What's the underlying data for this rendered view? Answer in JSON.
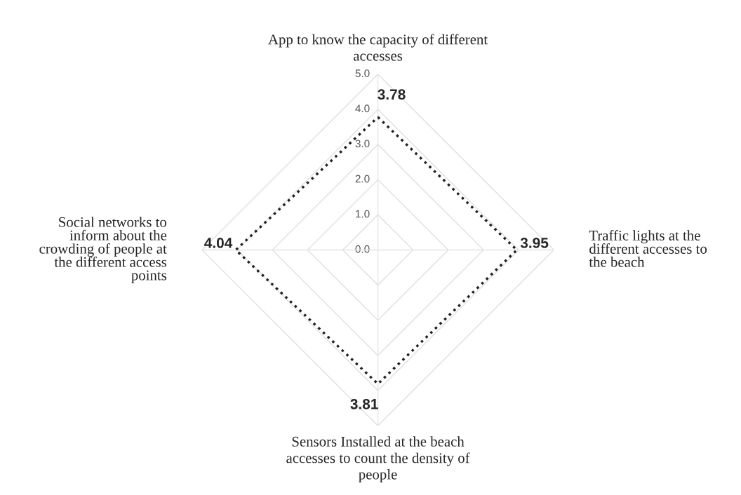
{
  "chart_data": {
    "type": "radar",
    "categories": [
      "App to know the capacity of different accesses",
      "Traffic lights at the different accesses to the beach",
      "Sensors Installed at the beach accesses to count the density of people",
      "Social networks to inform about the crowding of people at the different access points"
    ],
    "series": [
      {
        "color": "#222222",
        "values": [
          3.78,
          3.95,
          3.81,
          4.04
        ]
      }
    ],
    "ylim": [
      0,
      5
    ],
    "yticks": [
      {
        "value": 0,
        "label": "0.0"
      },
      {
        "value": 1,
        "label": "1.0"
      },
      {
        "value": 2,
        "label": "2.0"
      },
      {
        "value": 3,
        "label": "3.0"
      },
      {
        "value": 4,
        "label": "4.0"
      },
      {
        "value": 5,
        "label": "5.0"
      }
    ],
    "data_labels": true,
    "line_style": "dotted",
    "marker": "none",
    "grid": true
  }
}
